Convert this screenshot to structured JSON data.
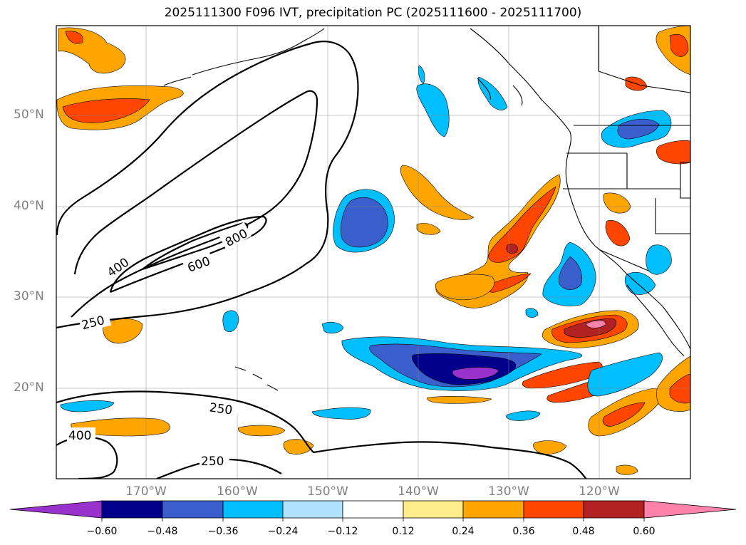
{
  "title": "2025111300 F096 IVT, precipitation PC (2025111600 - 2025111700)",
  "lat_labels": [
    "50°N",
    "40°N",
    "30°N",
    "20°N"
  ],
  "lon_labels": [
    "170°W",
    "160°W",
    "150°W",
    "140°W",
    "130°W",
    "120°W"
  ],
  "ivt_contour_labels": [
    "800",
    "600",
    "400",
    "250",
    "250",
    "400",
    "250"
  ],
  "colorbar": {
    "ticks": [
      "−0.60",
      "−0.48",
      "−0.36",
      "−0.24",
      "−0.12",
      "0.12",
      "0.24",
      "0.36",
      "0.48",
      "0.60"
    ],
    "colors": [
      "#9932CC",
      "#00008B",
      "#3A5FCD",
      "#00BFFF",
      "#B0E2FF",
      "#FFFFFF",
      "#FFEC8B",
      "#FFA500",
      "#FF4500",
      "#B22222",
      "#FF82AB"
    ]
  }
}
